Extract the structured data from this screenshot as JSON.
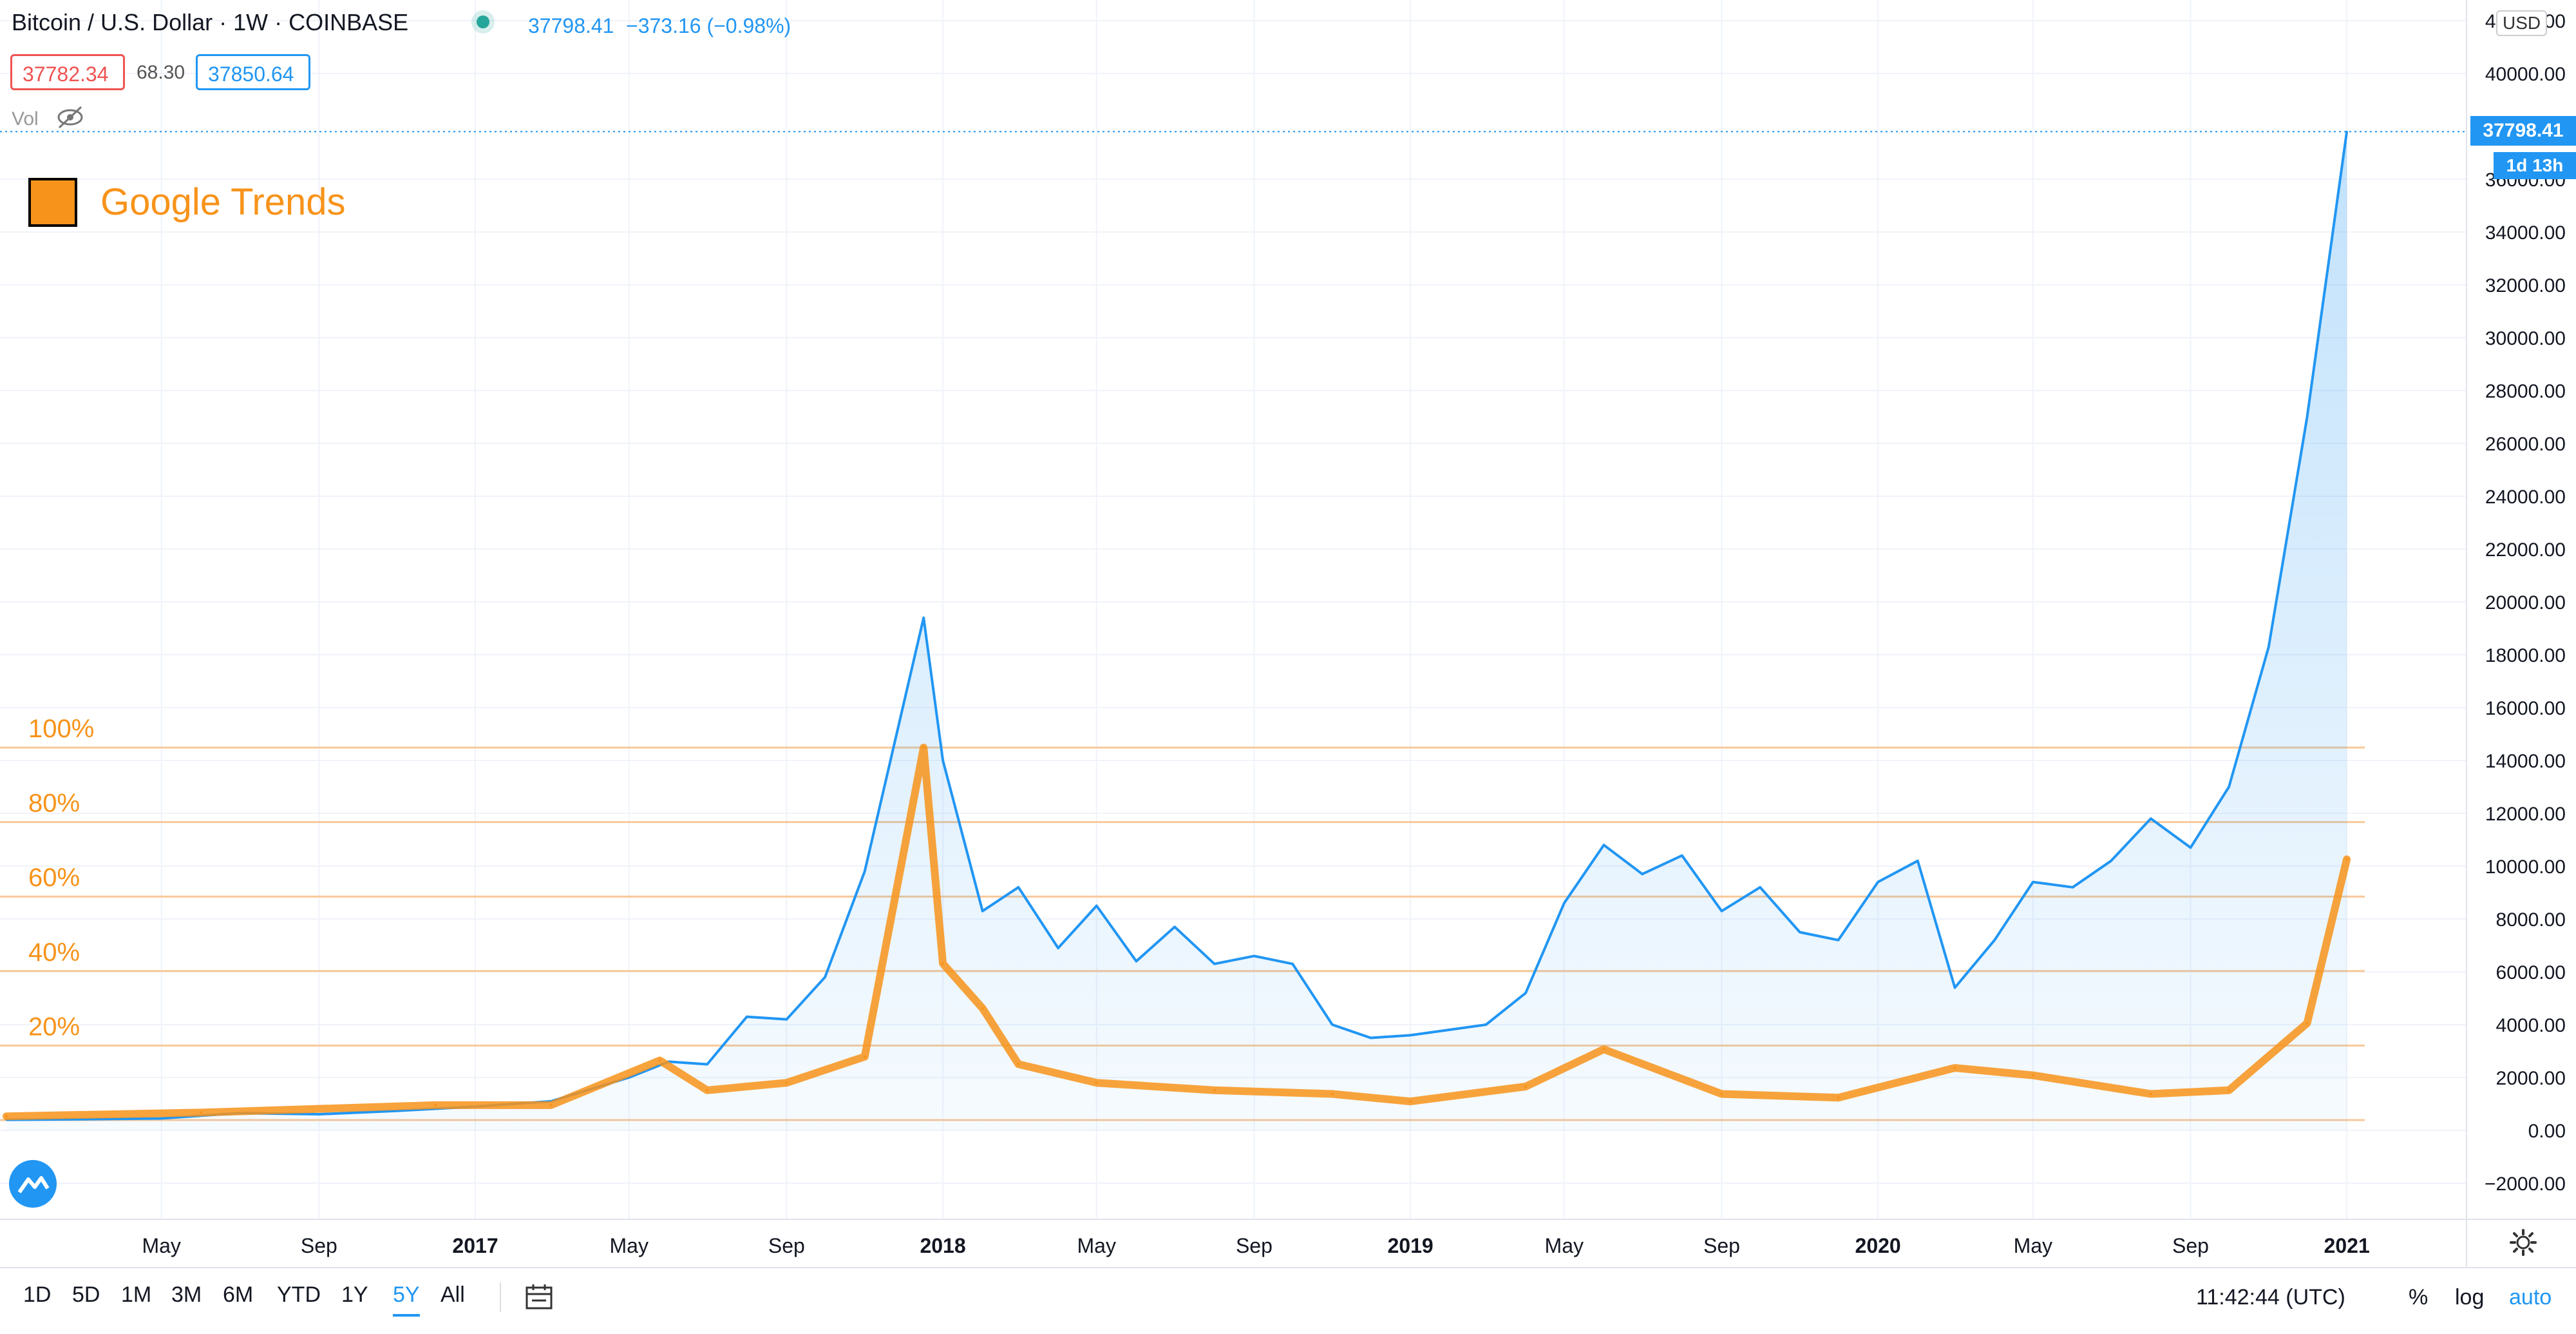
{
  "header": {
    "symbol": "Bitcoin / U.S. Dollar · 1W · COINBASE",
    "last_price": "37798.41",
    "change": "−373.16 (−0.98%)",
    "bid": "37782.34",
    "spread": "68.30",
    "ask": "37850.64",
    "vol_label": "Vol"
  },
  "legend": {
    "google_trends": "Google Trends"
  },
  "price_axis": {
    "currency": "USD",
    "ticks": [
      "42000.00",
      "40000.00",
      "36000.00",
      "34000.00",
      "32000.00",
      "30000.00",
      "28000.00",
      "26000.00",
      "24000.00",
      "22000.00",
      "20000.00",
      "18000.00",
      "16000.00",
      "14000.00",
      "12000.00",
      "10000.00",
      "8000.00",
      "6000.00",
      "4000.00",
      "2000.00",
      "0.00",
      "−2000.00"
    ],
    "last_price_tag": "37798.41",
    "countdown_tag": "1d 13h"
  },
  "time_axis": {
    "labels": [
      "May",
      "Sep",
      "2017",
      "May",
      "Sep",
      "2018",
      "May",
      "Sep",
      "2019",
      "May",
      "Sep",
      "2020",
      "May",
      "Sep",
      "2021"
    ]
  },
  "trend_levels": [
    "100%",
    "80%",
    "60%",
    "40%",
    "20%"
  ],
  "timeframes": [
    "1D",
    "5D",
    "1M",
    "3M",
    "6M",
    "YTD",
    "1Y",
    "5Y",
    "All"
  ],
  "active_timeframe": "5Y",
  "footer": {
    "clock": "11:42:44 (UTC)",
    "percent": "%",
    "log": "log",
    "auto": "auto"
  },
  "colors": {
    "price_line": "#2196f3",
    "trends_line": "#f7931a",
    "level_line": "#f7c99a",
    "down": "#ef5350"
  },
  "chart_data": [
    {
      "type": "area",
      "x": [
        "2016-01",
        "2016-03",
        "2016-05",
        "2016-07",
        "2016-09",
        "2016-11",
        "2017-01",
        "2017-03",
        "2017-05",
        "2017-06",
        "2017-07",
        "2017-08",
        "2017-09",
        "2017-10",
        "2017-11",
        "2017-12-17",
        "2018-01",
        "2018-02",
        "2018-03",
        "2018-04",
        "2018-05",
        "2018-06",
        "2018-07",
        "2018-08",
        "2018-09",
        "2018-10",
        "2018-11",
        "2018-12",
        "2019-01",
        "2019-03",
        "2019-04",
        "2019-05",
        "2019-06",
        "2019-07",
        "2019-08",
        "2019-09",
        "2019-10",
        "2019-11",
        "2019-12",
        "2020-01",
        "2020-02",
        "2020-03",
        "2020-04",
        "2020-05",
        "2020-06",
        "2020-07",
        "2020-08",
        "2020-09",
        "2020-10",
        "2020-11",
        "2020-12",
        "2021-01"
      ],
      "series": [
        {
          "name": "Bitcoin / U.S. Dollar",
          "values": [
            400,
            420,
            450,
            650,
            610,
            740,
            900,
            1100,
            2000,
            2600,
            2500,
            4300,
            4200,
            5800,
            9800,
            19400,
            14000,
            8300,
            9200,
            6900,
            8500,
            6400,
            7700,
            6300,
            6600,
            6300,
            4000,
            3500,
            3600,
            4000,
            5200,
            8600,
            10800,
            9700,
            10400,
            8300,
            9200,
            7500,
            7200,
            9400,
            10200,
            5400,
            7200,
            9400,
            9200,
            10200,
            11800,
            10700,
            13000,
            18300,
            27000,
            37800
          ]
        }
      ],
      "ylim": [
        -3000,
        42000
      ]
    },
    {
      "type": "line",
      "x": [
        "2016-01",
        "2016-06",
        "2016-12",
        "2017-03",
        "2017-05-25",
        "2017-07",
        "2017-09",
        "2017-11",
        "2017-12-17",
        "2018-01",
        "2018-02",
        "2018-03",
        "2018-05",
        "2018-08",
        "2018-11",
        "2019-01",
        "2019-04",
        "2019-06",
        "2019-09",
        "2019-12",
        "2020-03",
        "2020-05",
        "2020-08",
        "2020-10",
        "2020-12",
        "2021-01"
      ],
      "series": [
        {
          "name": "Google Trends",
          "values": [
            1,
            2,
            4,
            4,
            16,
            8,
            10,
            17,
            100,
            42,
            30,
            15,
            10,
            8,
            7,
            5,
            9,
            19,
            7,
            6,
            14,
            12,
            7,
            8,
            26,
            70
          ]
        }
      ],
      "ylim": [
        0,
        100
      ]
    }
  ]
}
